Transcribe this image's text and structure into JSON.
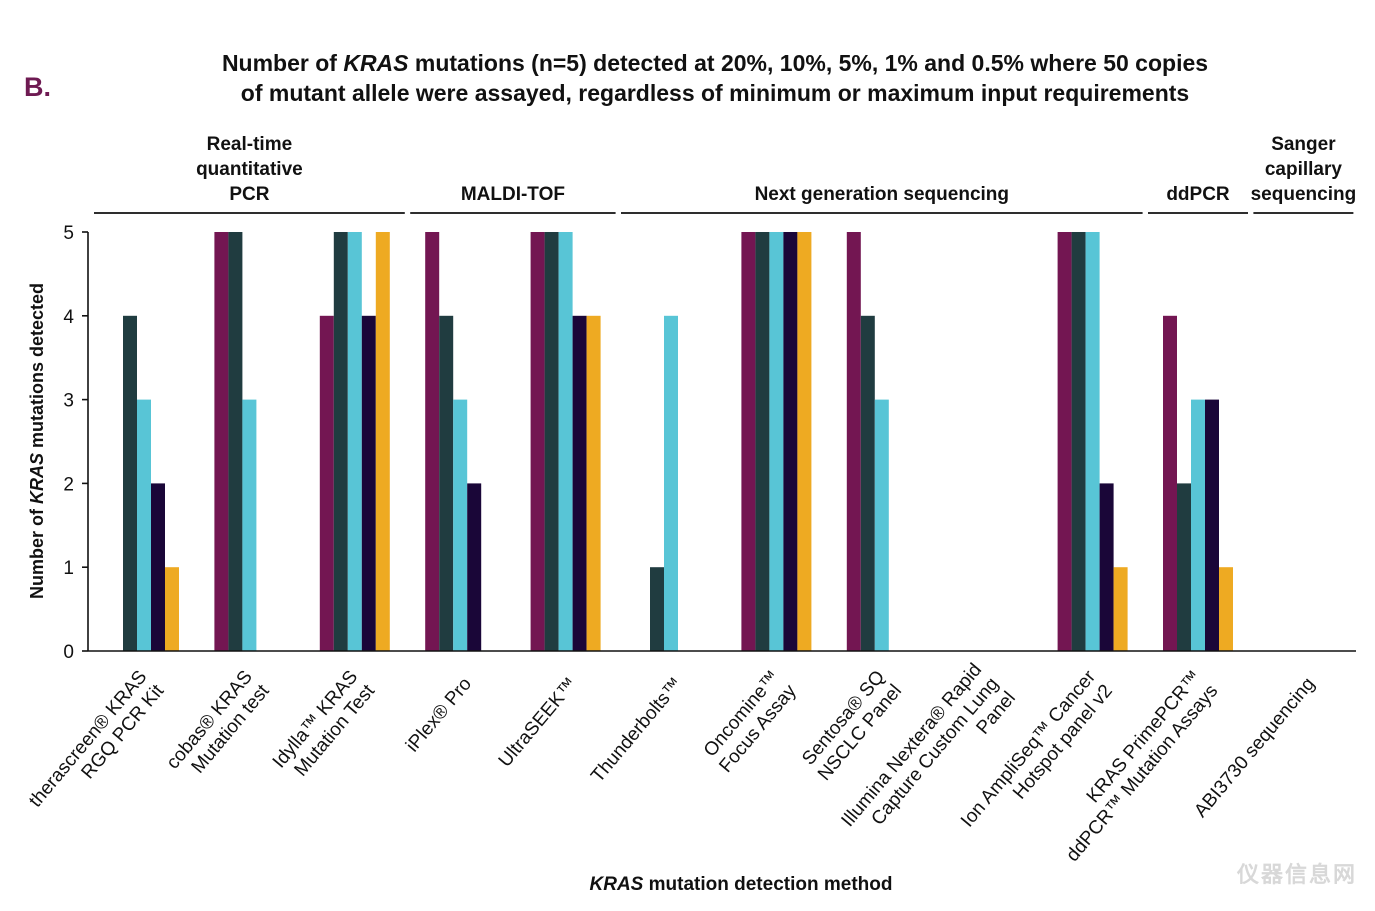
{
  "panel_label": "B.",
  "title": {
    "line1_pre": "Number of ",
    "line1_italic": "KRAS",
    "line1_post": " mutations (n=5) detected at 20%, 10%, 5%, 1% and 0.5% where 50 copies",
    "line2": "of mutant allele were assayed, regardless of minimum or maximum input requirements"
  },
  "watermark": "仪器信息网",
  "chart_data": {
    "type": "bar",
    "title": "Number of KRAS mutations (n=5) detected at 20%, 10%, 5%, 1% and 0.5% where 50 copies of mutant allele were assayed, regardless of minimum or maximum input requirements",
    "xlabel": "KRAS mutation detection method",
    "xlabel_italic": "KRAS",
    "xlabel_rest": " mutation detection method",
    "ylabel": "Number of KRAS mutations detected",
    "ylabel_pre": "Number of ",
    "ylabel_italic": "KRAS",
    "ylabel_post": " mutations detected",
    "ylim": [
      0,
      5
    ],
    "yticks": [
      0,
      1,
      2,
      3,
      4,
      5
    ],
    "grid": false,
    "legend": "none",
    "categories": [
      {
        "lines": [
          "therascreen® KRAS",
          "RGQ PCR Kit"
        ]
      },
      {
        "lines": [
          "cobas® KRAS",
          "Mutation test"
        ]
      },
      {
        "lines": [
          "Idylla™ KRAS",
          "Mutation Test"
        ]
      },
      {
        "lines": [
          "iPlex® Pro"
        ]
      },
      {
        "lines": [
          "UltraSEEK™"
        ]
      },
      {
        "lines": [
          "Thunderbolts™"
        ]
      },
      {
        "lines": [
          "Oncomine™",
          "Focus Assay"
        ]
      },
      {
        "lines": [
          "Sentosa® SQ",
          "NSCLC Panel"
        ]
      },
      {
        "lines": [
          "Illumina Nextera® Rapid",
          "Capture Custom Lung",
          "Panel"
        ]
      },
      {
        "lines": [
          "Ion AmpliSeq™ Cancer",
          "Hotspot panel v2"
        ]
      },
      {
        "lines": [
          "KRAS PrimePCR™",
          "ddPCR™ Mutation Assays"
        ]
      },
      {
        "lines": [
          "ABI3730 sequencing"
        ]
      }
    ],
    "series": [
      {
        "name": "20%",
        "color": "#731652",
        "values": [
          0,
          5,
          4,
          5,
          5,
          0,
          5,
          5,
          0,
          5,
          4,
          0
        ]
      },
      {
        "name": "10%",
        "color": "#203c40",
        "values": [
          4,
          5,
          5,
          4,
          5,
          1,
          5,
          4,
          0,
          5,
          2,
          0
        ]
      },
      {
        "name": "5%",
        "color": "#58c5d6",
        "values": [
          3,
          3,
          5,
          3,
          5,
          4,
          5,
          3,
          0,
          5,
          3,
          0
        ]
      },
      {
        "name": "1%",
        "color": "#1a0638",
        "values": [
          2,
          0,
          4,
          2,
          4,
          0,
          5,
          0,
          0,
          2,
          3,
          0
        ]
      },
      {
        "name": "0.5%",
        "color": "#eeaa22",
        "values": [
          1,
          0,
          5,
          0,
          4,
          0,
          5,
          0,
          0,
          1,
          1,
          0
        ]
      }
    ],
    "method_groups": [
      {
        "lines": [
          "Real-time",
          "quantitative",
          "PCR"
        ],
        "from": 0,
        "to": 2
      },
      {
        "lines": [
          "MALDI-TOF"
        ],
        "from": 3,
        "to": 4
      },
      {
        "lines": [
          "Next generation sequencing"
        ],
        "from": 5,
        "to": 9
      },
      {
        "lines": [
          "ddPCR"
        ],
        "from": 10,
        "to": 10
      },
      {
        "lines": [
          "Sanger",
          "capillary",
          "sequencing"
        ],
        "from": 11,
        "to": 11
      }
    ]
  }
}
